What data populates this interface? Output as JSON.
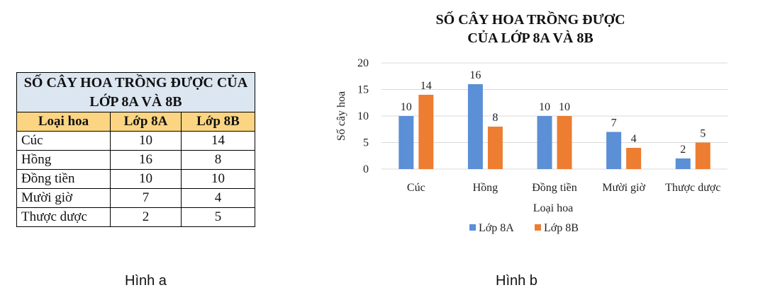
{
  "table": {
    "title_line1": "SỐ CÂY HOA TRỒNG ĐƯỢC CỦA",
    "title_line2": "LỚP 8A VÀ 8B",
    "headers": [
      "Loại hoa",
      "Lớp 8A",
      "Lớp 8B"
    ],
    "rows": [
      [
        "Cúc",
        "10",
        "14"
      ],
      [
        "Hồng",
        "16",
        "8"
      ],
      [
        "Đồng tiền",
        "10",
        "10"
      ],
      [
        "Mười giờ",
        "7",
        "4"
      ],
      [
        "Thược dược",
        "2",
        "5"
      ]
    ]
  },
  "captions": {
    "a": "Hình a",
    "b": "Hình b"
  },
  "chart_data": {
    "type": "bar",
    "title_line1": "SỐ CÂY HOA TRỒNG ĐƯỢC",
    "title_line2": "CỦA LỚP 8A VÀ 8B",
    "categories": [
      "Cúc",
      "Hồng",
      "Đồng tiền",
      "Mười giờ",
      "Thược dược"
    ],
    "series": [
      {
        "name": "Lớp 8A",
        "values": [
          10,
          16,
          10,
          7,
          2
        ],
        "color": "#5b8fd6"
      },
      {
        "name": "Lớp 8B",
        "values": [
          14,
          8,
          10,
          4,
          5
        ],
        "color": "#ed7d31"
      }
    ],
    "xlabel": "Loại hoa",
    "ylabel": "Số cây hoa",
    "ylim": [
      0,
      20
    ],
    "yticks": [
      0,
      5,
      10,
      15,
      20
    ],
    "grid": true,
    "legend": "bottom"
  }
}
